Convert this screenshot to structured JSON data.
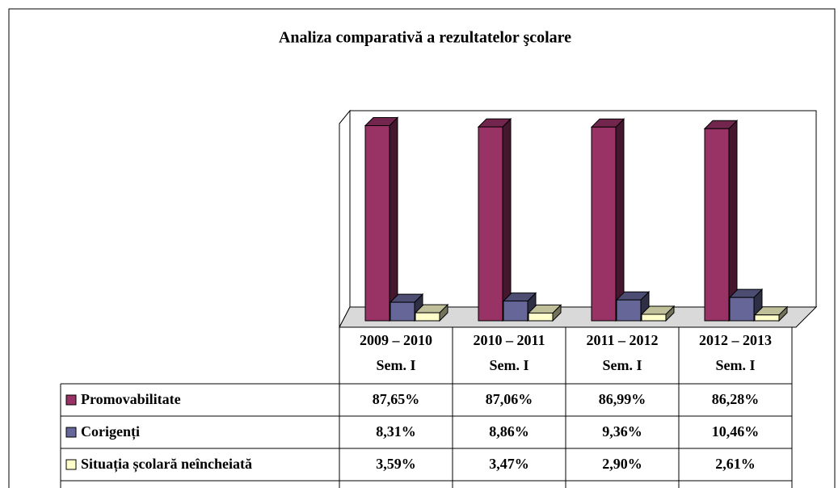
{
  "chart_data": {
    "type": "bar3d",
    "title": "Analiza comparativă a rezultatelor şcolare",
    "categories": [
      "2009 – 2010\nSem. I",
      "2010 – 2011\nSem. I",
      "2011 – 2012\nSem. I",
      "2012 – 2013\nSem. I"
    ],
    "ylim": [
      0,
      90
    ],
    "series": [
      {
        "name": "Promovabilitate",
        "color": "#993366",
        "values": [
          87.65,
          87.06,
          86.99,
          86.28
        ],
        "value_labels": [
          "87,65%",
          "87,06%",
          "86,99%",
          "86,28%"
        ]
      },
      {
        "name": "Corigenți",
        "color": "#666699",
        "values": [
          8.31,
          8.86,
          9.36,
          10.46
        ],
        "value_labels": [
          "8,31%",
          "8,86%",
          "9,36%",
          "10,46%"
        ]
      },
      {
        "name": "Situația școlară neîncheiată",
        "color": "#FFFFCC",
        "values": [
          3.59,
          3.47,
          2.9,
          2.61
        ],
        "value_labels": [
          "3,59%",
          "3,47%",
          "2,90%",
          "2,61%"
        ]
      }
    ]
  }
}
